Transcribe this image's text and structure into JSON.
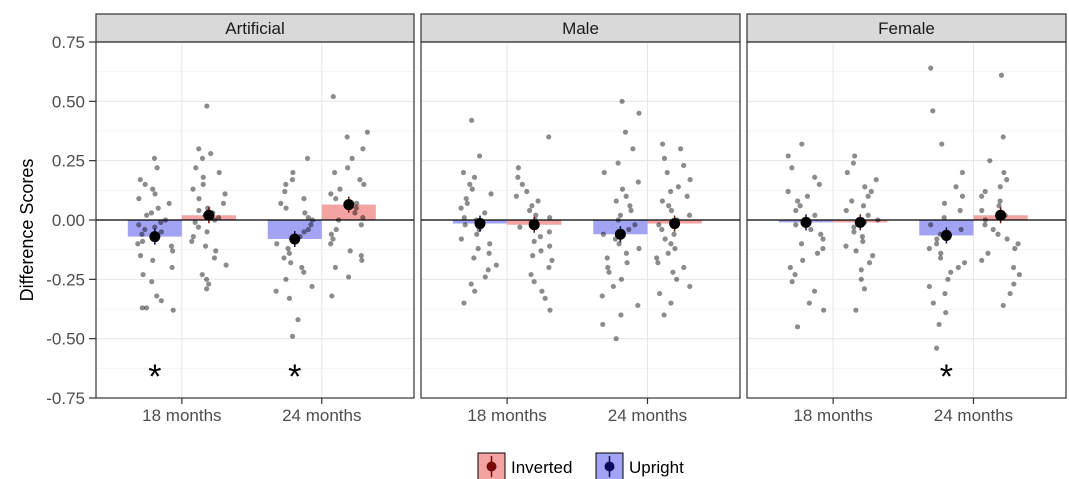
{
  "chart_data": {
    "type": "bar",
    "ylabel": "Difference Scores",
    "xlabel": "",
    "ylim": [
      -0.75,
      0.75
    ],
    "yticks": [
      "0.75",
      "0.50",
      "0.25",
      "0.00",
      "-0.25",
      "-0.50",
      "-0.75"
    ],
    "ytick_values": [
      0.75,
      0.5,
      0.25,
      0.0,
      -0.25,
      -0.5,
      -0.75
    ],
    "categories": [
      "18 months",
      "24 months"
    ],
    "grid": true,
    "legend_position": "bottom",
    "legend": [
      {
        "name": "Inverted",
        "fill": "#f4a3a3",
        "point": "#7a0a0a"
      },
      {
        "name": "Upright",
        "fill": "#a3a3f4",
        "point": "#0a0a5a"
      }
    ],
    "significance_marker": "*",
    "panels": [
      {
        "name": "Artificial",
        "groups": [
          {
            "category": "18 months",
            "upright": {
              "mean": -0.07,
              "points": [
                0.26,
                0.22,
                0.17,
                0.15,
                0.13,
                0.11,
                0.09,
                0.07,
                0.05,
                0.03,
                0.02,
                0.0,
                -0.01,
                -0.02,
                -0.03,
                -0.04,
                -0.05,
                -0.06,
                -0.07,
                -0.08,
                -0.09,
                -0.1,
                -0.11,
                -0.13,
                -0.15,
                -0.17,
                -0.2,
                -0.23,
                -0.26,
                -0.32,
                -0.34,
                -0.37,
                -0.37,
                -0.38
              ]
            },
            "inverted": {
              "mean": 0.02,
              "points": [
                0.48,
                0.3,
                0.28,
                0.26,
                0.22,
                0.2,
                0.18,
                0.15,
                0.13,
                0.11,
                0.09,
                0.07,
                0.05,
                0.04,
                0.03,
                0.02,
                0.01,
                0.0,
                -0.01,
                -0.03,
                -0.05,
                -0.07,
                -0.09,
                -0.11,
                -0.13,
                -0.16,
                -0.19,
                -0.23,
                -0.25,
                -0.27,
                -0.29
              ]
            },
            "marker": true
          },
          {
            "category": "24 months",
            "upright": {
              "mean": -0.08,
              "points": [
                0.26,
                0.2,
                0.17,
                0.15,
                0.12,
                0.09,
                0.07,
                0.05,
                0.03,
                0.01,
                0.0,
                -0.02,
                -0.04,
                -0.05,
                -0.07,
                -0.08,
                -0.1,
                -0.12,
                -0.14,
                -0.16,
                -0.18,
                -0.2,
                -0.22,
                -0.25,
                -0.28,
                -0.3,
                -0.33,
                -0.42,
                -0.49
              ]
            },
            "inverted": {
              "mean": 0.065,
              "points": [
                0.52,
                0.37,
                0.35,
                0.3,
                0.26,
                0.22,
                0.2,
                0.17,
                0.15,
                0.13,
                0.11,
                0.09,
                0.07,
                0.05,
                0.03,
                0.01,
                0.0,
                -0.02,
                -0.04,
                -0.06,
                -0.08,
                -0.1,
                -0.13,
                -0.15,
                -0.17,
                -0.2,
                -0.24,
                -0.32
              ]
            },
            "marker": true
          }
        ]
      },
      {
        "name": "Male",
        "groups": [
          {
            "category": "18 months",
            "upright": {
              "mean": -0.015,
              "points": [
                0.42,
                0.27,
                0.2,
                0.18,
                0.15,
                0.13,
                0.11,
                0.09,
                0.07,
                0.05,
                0.03,
                0.01,
                0.0,
                -0.02,
                -0.04,
                -0.06,
                -0.08,
                -0.1,
                -0.12,
                -0.14,
                -0.16,
                -0.19,
                -0.21,
                -0.24,
                -0.27,
                -0.3,
                -0.35
              ]
            },
            "inverted": {
              "mean": -0.02,
              "points": [
                0.35,
                0.22,
                0.18,
                0.15,
                0.12,
                0.1,
                0.08,
                0.06,
                0.04,
                0.02,
                0.01,
                0.0,
                -0.01,
                -0.03,
                -0.05,
                -0.07,
                -0.09,
                -0.11,
                -0.13,
                -0.15,
                -0.17,
                -0.2,
                -0.23,
                -0.26,
                -0.3,
                -0.33,
                -0.38
              ]
            },
            "marker": false
          },
          {
            "category": "24 months",
            "upright": {
              "mean": -0.06,
              "points": [
                0.5,
                0.45,
                0.37,
                0.3,
                0.24,
                0.2,
                0.16,
                0.13,
                0.1,
                0.08,
                0.06,
                0.04,
                0.02,
                0.0,
                -0.02,
                -0.04,
                -0.06,
                -0.08,
                -0.1,
                -0.12,
                -0.14,
                -0.16,
                -0.18,
                -0.2,
                -0.22,
                -0.25,
                -0.28,
                -0.32,
                -0.36,
                -0.4,
                -0.44,
                -0.5
              ]
            },
            "inverted": {
              "mean": -0.015,
              "points": [
                0.32,
                0.3,
                0.26,
                0.23,
                0.2,
                0.17,
                0.14,
                0.12,
                0.1,
                0.08,
                0.06,
                0.04,
                0.02,
                0.0,
                -0.02,
                -0.04,
                -0.06,
                -0.08,
                -0.1,
                -0.12,
                -0.14,
                -0.16,
                -0.18,
                -0.2,
                -0.22,
                -0.25,
                -0.28,
                -0.31,
                -0.35,
                -0.4
              ]
            },
            "marker": false
          }
        ]
      },
      {
        "name": "Female",
        "groups": [
          {
            "category": "18 months",
            "upright": {
              "mean": -0.01,
              "points": [
                0.32,
                0.27,
                0.22,
                0.18,
                0.15,
                0.12,
                0.1,
                0.08,
                0.06,
                0.04,
                0.02,
                0.0,
                -0.02,
                -0.04,
                -0.06,
                -0.08,
                -0.1,
                -0.12,
                -0.14,
                -0.17,
                -0.2,
                -0.23,
                -0.26,
                -0.3,
                -0.35,
                -0.38,
                -0.45
              ]
            },
            "inverted": {
              "mean": -0.01,
              "points": [
                0.27,
                0.24,
                0.2,
                0.17,
                0.14,
                0.12,
                0.1,
                0.08,
                0.06,
                0.04,
                0.02,
                0.0,
                -0.01,
                -0.03,
                -0.05,
                -0.07,
                -0.09,
                -0.11,
                -0.13,
                -0.15,
                -0.18,
                -0.21,
                -0.25,
                -0.29,
                -0.38
              ]
            },
            "marker": false
          },
          {
            "category": "24 months",
            "upright": {
              "mean": -0.065,
              "points": [
                0.64,
                0.46,
                0.32,
                0.2,
                0.14,
                0.1,
                0.07,
                0.04,
                0.01,
                -0.02,
                -0.04,
                -0.06,
                -0.08,
                -0.1,
                -0.12,
                -0.14,
                -0.16,
                -0.18,
                -0.2,
                -0.22,
                -0.25,
                -0.28,
                -0.31,
                -0.35,
                -0.39,
                -0.44,
                -0.54
              ]
            },
            "inverted": {
              "mean": 0.02,
              "points": [
                0.61,
                0.35,
                0.25,
                0.2,
                0.17,
                0.14,
                0.12,
                0.1,
                0.08,
                0.06,
                0.04,
                0.02,
                0.0,
                -0.02,
                -0.04,
                -0.06,
                -0.08,
                -0.1,
                -0.12,
                -0.14,
                -0.17,
                -0.2,
                -0.23,
                -0.27,
                -0.31,
                -0.36
              ]
            },
            "marker": true
          }
        ]
      }
    ]
  }
}
